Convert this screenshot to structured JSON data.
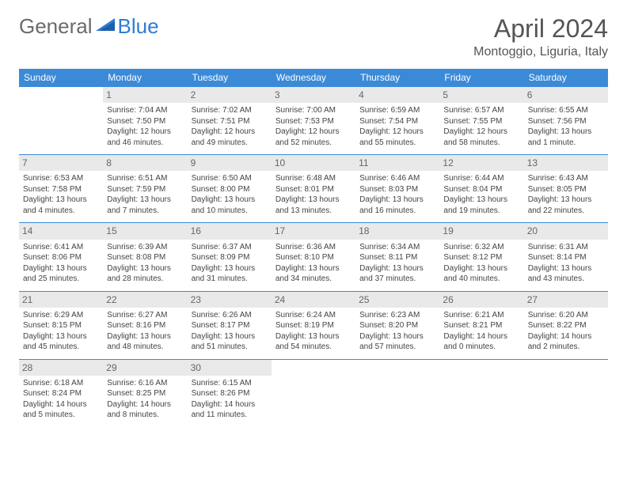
{
  "logo": {
    "text1": "General",
    "text2": "Blue"
  },
  "title": "April 2024",
  "location": "Montoggio, Liguria, Italy",
  "weekdays": [
    "Sunday",
    "Monday",
    "Tuesday",
    "Wednesday",
    "Thursday",
    "Friday",
    "Saturday"
  ],
  "colors": {
    "header_bg": "#3b8ad8",
    "header_text": "#ffffff",
    "daynum_bg": "#e9e9e9",
    "text": "#444444",
    "logo_blue": "#2e7cd6",
    "logo_gray": "#6b6b6b"
  },
  "weeks": [
    [
      null,
      {
        "n": "1",
        "sr": "Sunrise: 7:04 AM",
        "ss": "Sunset: 7:50 PM",
        "d1": "Daylight: 12 hours",
        "d2": "and 46 minutes."
      },
      {
        "n": "2",
        "sr": "Sunrise: 7:02 AM",
        "ss": "Sunset: 7:51 PM",
        "d1": "Daylight: 12 hours",
        "d2": "and 49 minutes."
      },
      {
        "n": "3",
        "sr": "Sunrise: 7:00 AM",
        "ss": "Sunset: 7:53 PM",
        "d1": "Daylight: 12 hours",
        "d2": "and 52 minutes."
      },
      {
        "n": "4",
        "sr": "Sunrise: 6:59 AM",
        "ss": "Sunset: 7:54 PM",
        "d1": "Daylight: 12 hours",
        "d2": "and 55 minutes."
      },
      {
        "n": "5",
        "sr": "Sunrise: 6:57 AM",
        "ss": "Sunset: 7:55 PM",
        "d1": "Daylight: 12 hours",
        "d2": "and 58 minutes."
      },
      {
        "n": "6",
        "sr": "Sunrise: 6:55 AM",
        "ss": "Sunset: 7:56 PM",
        "d1": "Daylight: 13 hours",
        "d2": "and 1 minute."
      }
    ],
    [
      {
        "n": "7",
        "sr": "Sunrise: 6:53 AM",
        "ss": "Sunset: 7:58 PM",
        "d1": "Daylight: 13 hours",
        "d2": "and 4 minutes."
      },
      {
        "n": "8",
        "sr": "Sunrise: 6:51 AM",
        "ss": "Sunset: 7:59 PM",
        "d1": "Daylight: 13 hours",
        "d2": "and 7 minutes."
      },
      {
        "n": "9",
        "sr": "Sunrise: 6:50 AM",
        "ss": "Sunset: 8:00 PM",
        "d1": "Daylight: 13 hours",
        "d2": "and 10 minutes."
      },
      {
        "n": "10",
        "sr": "Sunrise: 6:48 AM",
        "ss": "Sunset: 8:01 PM",
        "d1": "Daylight: 13 hours",
        "d2": "and 13 minutes."
      },
      {
        "n": "11",
        "sr": "Sunrise: 6:46 AM",
        "ss": "Sunset: 8:03 PM",
        "d1": "Daylight: 13 hours",
        "d2": "and 16 minutes."
      },
      {
        "n": "12",
        "sr": "Sunrise: 6:44 AM",
        "ss": "Sunset: 8:04 PM",
        "d1": "Daylight: 13 hours",
        "d2": "and 19 minutes."
      },
      {
        "n": "13",
        "sr": "Sunrise: 6:43 AM",
        "ss": "Sunset: 8:05 PM",
        "d1": "Daylight: 13 hours",
        "d2": "and 22 minutes."
      }
    ],
    [
      {
        "n": "14",
        "sr": "Sunrise: 6:41 AM",
        "ss": "Sunset: 8:06 PM",
        "d1": "Daylight: 13 hours",
        "d2": "and 25 minutes."
      },
      {
        "n": "15",
        "sr": "Sunrise: 6:39 AM",
        "ss": "Sunset: 8:08 PM",
        "d1": "Daylight: 13 hours",
        "d2": "and 28 minutes."
      },
      {
        "n": "16",
        "sr": "Sunrise: 6:37 AM",
        "ss": "Sunset: 8:09 PM",
        "d1": "Daylight: 13 hours",
        "d2": "and 31 minutes."
      },
      {
        "n": "17",
        "sr": "Sunrise: 6:36 AM",
        "ss": "Sunset: 8:10 PM",
        "d1": "Daylight: 13 hours",
        "d2": "and 34 minutes."
      },
      {
        "n": "18",
        "sr": "Sunrise: 6:34 AM",
        "ss": "Sunset: 8:11 PM",
        "d1": "Daylight: 13 hours",
        "d2": "and 37 minutes."
      },
      {
        "n": "19",
        "sr": "Sunrise: 6:32 AM",
        "ss": "Sunset: 8:12 PM",
        "d1": "Daylight: 13 hours",
        "d2": "and 40 minutes."
      },
      {
        "n": "20",
        "sr": "Sunrise: 6:31 AM",
        "ss": "Sunset: 8:14 PM",
        "d1": "Daylight: 13 hours",
        "d2": "and 43 minutes."
      }
    ],
    [
      {
        "n": "21",
        "sr": "Sunrise: 6:29 AM",
        "ss": "Sunset: 8:15 PM",
        "d1": "Daylight: 13 hours",
        "d2": "and 45 minutes."
      },
      {
        "n": "22",
        "sr": "Sunrise: 6:27 AM",
        "ss": "Sunset: 8:16 PM",
        "d1": "Daylight: 13 hours",
        "d2": "and 48 minutes."
      },
      {
        "n": "23",
        "sr": "Sunrise: 6:26 AM",
        "ss": "Sunset: 8:17 PM",
        "d1": "Daylight: 13 hours",
        "d2": "and 51 minutes."
      },
      {
        "n": "24",
        "sr": "Sunrise: 6:24 AM",
        "ss": "Sunset: 8:19 PM",
        "d1": "Daylight: 13 hours",
        "d2": "and 54 minutes."
      },
      {
        "n": "25",
        "sr": "Sunrise: 6:23 AM",
        "ss": "Sunset: 8:20 PM",
        "d1": "Daylight: 13 hours",
        "d2": "and 57 minutes."
      },
      {
        "n": "26",
        "sr": "Sunrise: 6:21 AM",
        "ss": "Sunset: 8:21 PM",
        "d1": "Daylight: 14 hours",
        "d2": "and 0 minutes."
      },
      {
        "n": "27",
        "sr": "Sunrise: 6:20 AM",
        "ss": "Sunset: 8:22 PM",
        "d1": "Daylight: 14 hours",
        "d2": "and 2 minutes."
      }
    ],
    [
      {
        "n": "28",
        "sr": "Sunrise: 6:18 AM",
        "ss": "Sunset: 8:24 PM",
        "d1": "Daylight: 14 hours",
        "d2": "and 5 minutes."
      },
      {
        "n": "29",
        "sr": "Sunrise: 6:16 AM",
        "ss": "Sunset: 8:25 PM",
        "d1": "Daylight: 14 hours",
        "d2": "and 8 minutes."
      },
      {
        "n": "30",
        "sr": "Sunrise: 6:15 AM",
        "ss": "Sunset: 8:26 PM",
        "d1": "Daylight: 14 hours",
        "d2": "and 11 minutes."
      },
      null,
      null,
      null,
      null
    ]
  ]
}
